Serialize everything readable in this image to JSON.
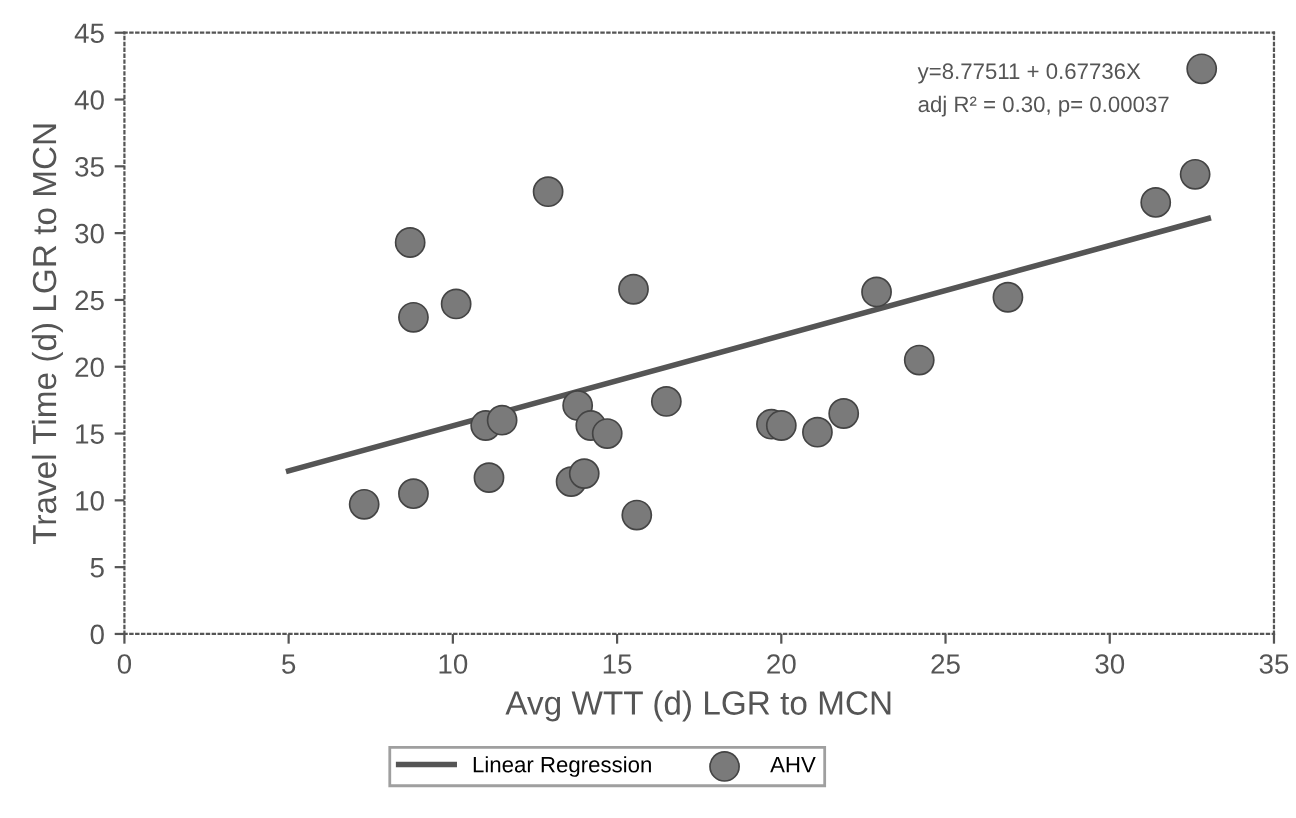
{
  "chart_data": {
    "type": "scatter",
    "xlabel": "Avg WTT (d) LGR to MCN",
    "ylabel": "Travel Time (d) LGR to MCN",
    "xlim": [
      0,
      35
    ],
    "xticks": [
      0,
      5,
      10,
      15,
      20,
      25,
      30,
      35
    ],
    "ylim": [
      0,
      45
    ],
    "yticks": [
      0,
      5,
      10,
      15,
      20,
      25,
      30,
      35,
      40,
      45
    ],
    "grid": false,
    "legend": "bottom",
    "series": [
      {
        "type": "line",
        "name": "Linear Regression",
        "color": "#555555",
        "marker": "none",
        "x": [
          5,
          33
        ],
        "values": [
          12.2,
          31.1
        ]
      },
      {
        "marker": "circle",
        "name": "AHV",
        "color": "#7a7a7a",
        "x": [
          7.3,
          8.7,
          8.8,
          8.8,
          10.1,
          11.0,
          11.5,
          11.1,
          12.9,
          13.6,
          14.0,
          13.8,
          14.2,
          14.7,
          15.5,
          15.6,
          16.5,
          19.7,
          20.0,
          21.1,
          21.9,
          22.9,
          24.2,
          26.9,
          31.4,
          32.6,
          32.8
        ],
        "values": [
          9.7,
          29.3,
          23.7,
          10.5,
          24.7,
          15.6,
          16.0,
          11.7,
          33.1,
          11.4,
          12.0,
          17.1,
          15.6,
          15.0,
          25.8,
          8.9,
          17.4,
          15.7,
          15.6,
          15.1,
          16.5,
          25.6,
          20.5,
          25.2,
          32.3,
          34.4,
          42.3
        ]
      }
    ],
    "annotations": [
      "y=8.77511 + 0.67736X",
      "adj R² = 0.30, p= 0.00037"
    ]
  }
}
